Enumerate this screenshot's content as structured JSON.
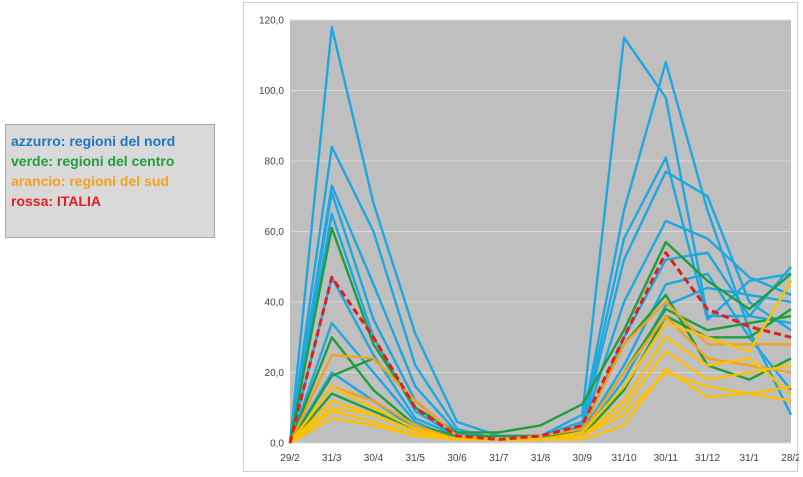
{
  "legend": {
    "items": [
      {
        "text": "azzurro: regioni del nord",
        "color": "#1f77c0"
      },
      {
        "text": "verde: regioni del centro",
        "color": "#1e9e3e"
      },
      {
        "text": "arancio: regioni del sud",
        "color": "#f4a21d"
      },
      {
        "text": "rossa: ITALIA",
        "color": "#e01e1e"
      }
    ]
  },
  "chart_data": {
    "type": "line",
    "title": "",
    "xlabel": "",
    "ylabel": "",
    "categories": [
      "29/2",
      "31/3",
      "30/4",
      "31/5",
      "30/6",
      "31/7",
      "31/8",
      "30/9",
      "31/10",
      "30/11",
      "31/12",
      "31/1",
      "28/2"
    ],
    "ylim": [
      0,
      120
    ],
    "yticks": [
      "0,0",
      "20,0",
      "40,0",
      "60,0",
      "80,0",
      "100,0",
      "120,0"
    ],
    "plot_background": "#bfbfbf",
    "grid": true,
    "series": [
      {
        "group": "nord",
        "color": "#1ea7e0",
        "values": [
          0,
          118,
          68,
          31,
          6,
          2,
          2,
          8,
          115,
          98,
          36,
          36,
          50
        ]
      },
      {
        "group": "nord",
        "color": "#1ea7e0",
        "values": [
          0,
          84,
          60,
          22,
          4,
          1,
          2,
          6,
          66,
          108,
          66,
          32,
          8
        ]
      },
      {
        "group": "nord",
        "color": "#1ea7e0",
        "values": [
          0,
          73,
          45,
          16,
          3,
          1,
          1,
          5,
          58,
          81,
          35,
          46,
          48
        ]
      },
      {
        "group": "nord",
        "color": "#1ea7e0",
        "values": [
          0,
          71,
          35,
          12,
          2,
          1,
          1,
          4,
          52,
          77,
          70,
          40,
          32
        ]
      },
      {
        "group": "nord",
        "color": "#1ea7e0",
        "values": [
          0,
          65,
          30,
          9,
          2,
          1,
          1,
          4,
          40,
          63,
          58,
          47,
          42
        ]
      },
      {
        "group": "nord",
        "color": "#1ea7e0",
        "values": [
          0,
          47,
          25,
          7,
          2,
          1,
          1,
          3,
          30,
          52,
          54,
          36,
          34
        ]
      },
      {
        "group": "nord",
        "color": "#1ea7e0",
        "values": [
          0,
          34,
          20,
          6,
          1,
          1,
          1,
          3,
          22,
          45,
          48,
          30,
          15
        ]
      },
      {
        "group": "nord",
        "color": "#1ea7e0",
        "values": [
          0,
          20,
          12,
          4,
          1,
          1,
          1,
          2,
          18,
          39,
          44,
          42,
          40
        ]
      },
      {
        "group": "centro",
        "color": "#1e9e3e",
        "values": [
          0,
          61,
          28,
          10,
          3,
          3,
          5,
          11,
          32,
          57,
          46,
          38,
          48
        ]
      },
      {
        "group": "centro",
        "color": "#1e9e3e",
        "values": [
          0,
          30,
          15,
          5,
          2,
          2,
          2,
          4,
          28,
          42,
          22,
          18,
          24
        ]
      },
      {
        "group": "centro",
        "color": "#1e9e3e",
        "values": [
          0,
          19,
          24,
          12,
          2,
          1,
          2,
          3,
          20,
          38,
          32,
          34,
          36
        ]
      },
      {
        "group": "centro",
        "color": "#1e9e3e",
        "values": [
          0,
          14,
          9,
          4,
          1,
          1,
          1,
          2,
          15,
          36,
          30,
          30,
          38
        ]
      },
      {
        "group": "sud",
        "color": "#f4a21d",
        "values": [
          0,
          25,
          24,
          12,
          2,
          1,
          2,
          4,
          28,
          40,
          28,
          28,
          28
        ]
      },
      {
        "group": "sud",
        "color": "#f4a21d",
        "values": [
          0,
          16,
          12,
          5,
          1,
          1,
          1,
          3,
          20,
          36,
          24,
          22,
          20
        ]
      },
      {
        "group": "sud",
        "color": "#ffc000",
        "values": [
          0,
          16,
          10,
          4,
          1,
          1,
          1,
          3,
          16,
          34,
          30,
          26,
          46
        ]
      },
      {
        "group": "sud",
        "color": "#ffc000",
        "values": [
          0,
          12,
          8,
          3,
          1,
          1,
          1,
          2,
          12,
          30,
          22,
          24,
          14
        ]
      },
      {
        "group": "sud",
        "color": "#ffc000",
        "values": [
          0,
          10,
          8,
          3,
          1,
          1,
          1,
          2,
          10,
          26,
          18,
          20,
          22
        ]
      },
      {
        "group": "sud",
        "color": "#ffc000",
        "values": [
          0,
          9,
          6,
          2,
          1,
          1,
          1,
          2,
          8,
          20,
          16,
          14,
          12
        ]
      },
      {
        "group": "sud",
        "color": "#ffc000",
        "values": [
          0,
          7,
          5,
          2,
          1,
          1,
          1,
          1,
          5,
          21,
          13,
          14,
          16
        ]
      },
      {
        "group": "italia",
        "color": "#e01e1e",
        "dashed": true,
        "values": [
          0,
          47,
          30,
          10,
          2,
          1,
          2,
          5,
          30,
          54,
          38,
          33,
          30
        ]
      }
    ]
  }
}
